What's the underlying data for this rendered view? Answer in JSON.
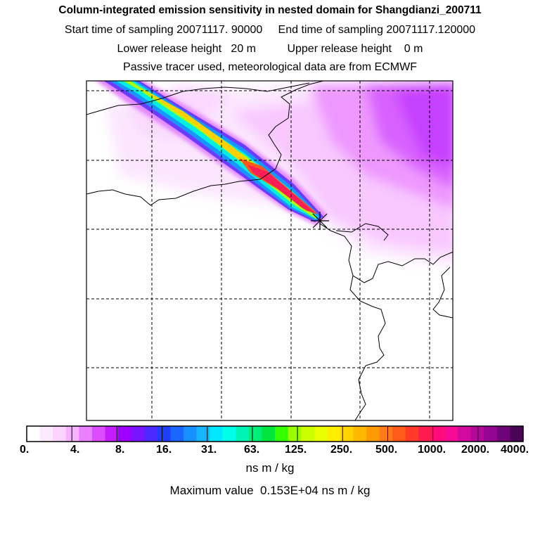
{
  "header": {
    "title": "Column-integrated emission sensitivity in nested domain for Shangdianzi_200711",
    "start_label": "Start time of sampling",
    "start_value": "20071117. 90000",
    "end_label": "End time of sampling",
    "end_value": "20071117.120000",
    "lower_label": "Lower release height",
    "lower_value": "20 m",
    "upper_label": "Upper release height",
    "upper_value": "0 m",
    "tracer_note": "Passive tracer used, meteorological data are from ECMWF"
  },
  "colors": {
    "scale": [
      "#ffffff",
      "#fde9ff",
      "#fbd3ff",
      "#f6b2ff",
      "#ea80ff",
      "#dd4dff",
      "#c51bff",
      "#9d00ff",
      "#7a13ff",
      "#4a28ff",
      "#1f3dff",
      "#1a66ff",
      "#168fff",
      "#16b6ff",
      "#00e8ff",
      "#00ffe6",
      "#00f5b4",
      "#00ee78",
      "#00e63c",
      "#33ff00",
      "#99ff00",
      "#ccff00",
      "#e8ff00",
      "#ffee00",
      "#ffd400",
      "#ffb800",
      "#ff9a00",
      "#ff7a1a",
      "#ff5a1a",
      "#ff3a28",
      "#ff1a50",
      "#ff0a78",
      "#f50a96",
      "#d20a9e",
      "#b5079a",
      "#930592",
      "#6e0478",
      "#4b0358"
    ],
    "frame": "#000000"
  },
  "chart_data": {
    "type": "heatmap",
    "title": "Column-integrated emission sensitivity in nested domain for Shangdianzi_200711",
    "site": "Shangdianzi",
    "site_marker": "asterisk",
    "colorbar": {
      "tick_labels": [
        "0.",
        "4.",
        "8.",
        "16.",
        "31.",
        "63.",
        "125.",
        "250.",
        "500.",
        "1000.",
        "2000.",
        "4000."
      ],
      "unit": "ns m / kg",
      "orientation": "horizontal"
    },
    "max_value_label": "Maximum value",
    "max_value": "0.153E+04",
    "max_value_unit": "ns m / kg",
    "grid": true
  }
}
